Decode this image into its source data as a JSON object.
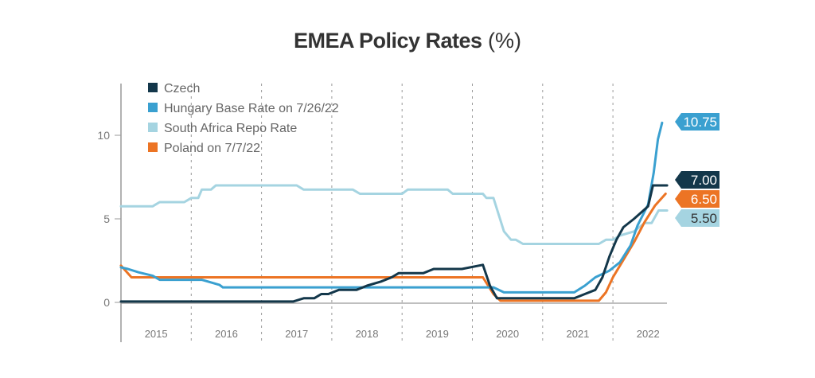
{
  "chart_data": {
    "type": "line",
    "title": "EMEA Policy Rates",
    "title_unit": "(%)",
    "xlabel": "",
    "ylabel": "",
    "xlim": [
      2015.0,
      2023.0
    ],
    "ylim": [
      -2.3,
      13.5
    ],
    "yticks": [
      0,
      5,
      10
    ],
    "ytick_labels": [
      "0",
      "5",
      "10"
    ],
    "x_categories": [
      "2015",
      "2016",
      "2017",
      "2018",
      "2019",
      "2020",
      "2021",
      "2022"
    ],
    "grid": "vertical dashed year separators",
    "legend_position": "top-left",
    "series": [
      {
        "name": "Czech",
        "color": "#13374a",
        "end_label": "7.00",
        "end_label_text_color": "#ffffff",
        "points": [
          [
            2015.0,
            0.05
          ],
          [
            2017.45,
            0.05
          ],
          [
            2017.6,
            0.25
          ],
          [
            2017.75,
            0.25
          ],
          [
            2017.85,
            0.5
          ],
          [
            2017.95,
            0.5
          ],
          [
            2018.1,
            0.75
          ],
          [
            2018.35,
            0.75
          ],
          [
            2018.5,
            1.0
          ],
          [
            2018.7,
            1.25
          ],
          [
            2018.85,
            1.5
          ],
          [
            2018.95,
            1.75
          ],
          [
            2019.3,
            1.75
          ],
          [
            2019.45,
            2.0
          ],
          [
            2019.85,
            2.0
          ],
          [
            2020.15,
            2.25
          ],
          [
            2020.25,
            1.0
          ],
          [
            2020.35,
            0.25
          ],
          [
            2021.45,
            0.25
          ],
          [
            2021.6,
            0.5
          ],
          [
            2021.75,
            0.75
          ],
          [
            2021.85,
            1.5
          ],
          [
            2021.95,
            2.75
          ],
          [
            2022.05,
            3.75
          ],
          [
            2022.15,
            4.5
          ],
          [
            2022.3,
            5.0
          ],
          [
            2022.5,
            5.75
          ],
          [
            2022.57,
            7.0
          ],
          [
            2022.77,
            7.0
          ]
        ]
      },
      {
        "name": "Hungary Base Rate on 7/26/22",
        "color": "#3aa0d0",
        "end_label": "10.75",
        "end_label_text_color": "#ffffff",
        "points": [
          [
            2015.0,
            2.1
          ],
          [
            2015.1,
            2.0
          ],
          [
            2015.25,
            1.8
          ],
          [
            2015.45,
            1.6
          ],
          [
            2015.55,
            1.35
          ],
          [
            2016.15,
            1.35
          ],
          [
            2016.4,
            1.05
          ],
          [
            2016.45,
            0.9
          ],
          [
            2020.3,
            0.9
          ],
          [
            2020.45,
            0.6
          ],
          [
            2021.45,
            0.6
          ],
          [
            2021.6,
            1.0
          ],
          [
            2021.75,
            1.5
          ],
          [
            2021.95,
            1.9
          ],
          [
            2022.1,
            2.4
          ],
          [
            2022.25,
            3.4
          ],
          [
            2022.35,
            4.6
          ],
          [
            2022.5,
            5.85
          ],
          [
            2022.58,
            7.75
          ],
          [
            2022.64,
            9.75
          ],
          [
            2022.7,
            10.75
          ]
        ]
      },
      {
        "name": "South Africa Repo Rate",
        "color": "#a5d4e1",
        "end_label": "5.50",
        "end_label_text_color": "#333333",
        "points": [
          [
            2015.0,
            5.75
          ],
          [
            2015.45,
            5.75
          ],
          [
            2015.55,
            6.0
          ],
          [
            2015.9,
            6.0
          ],
          [
            2016.0,
            6.25
          ],
          [
            2016.1,
            6.25
          ],
          [
            2016.15,
            6.75
          ],
          [
            2016.28,
            6.75
          ],
          [
            2016.35,
            7.0
          ],
          [
            2017.5,
            7.0
          ],
          [
            2017.6,
            6.75
          ],
          [
            2018.3,
            6.75
          ],
          [
            2018.4,
            6.5
          ],
          [
            2019.0,
            6.5
          ],
          [
            2019.08,
            6.75
          ],
          [
            2019.65,
            6.75
          ],
          [
            2019.72,
            6.5
          ],
          [
            2020.15,
            6.5
          ],
          [
            2020.2,
            6.25
          ],
          [
            2020.3,
            6.25
          ],
          [
            2020.45,
            4.25
          ],
          [
            2020.55,
            3.75
          ],
          [
            2020.62,
            3.75
          ],
          [
            2020.72,
            3.5
          ],
          [
            2021.8,
            3.5
          ],
          [
            2021.9,
            3.75
          ],
          [
            2022.0,
            3.75
          ],
          [
            2022.1,
            4.0
          ],
          [
            2022.3,
            4.25
          ],
          [
            2022.45,
            4.75
          ],
          [
            2022.55,
            4.75
          ],
          [
            2022.65,
            5.5
          ],
          [
            2022.77,
            5.5
          ]
        ]
      },
      {
        "name": "Poland on 7/7/22",
        "color": "#ec7424",
        "end_label": "6.50",
        "end_label_text_color": "#ffffff",
        "points": [
          [
            2015.0,
            2.2
          ],
          [
            2015.15,
            1.5
          ],
          [
            2020.15,
            1.5
          ],
          [
            2020.3,
            0.5
          ],
          [
            2020.4,
            0.1
          ],
          [
            2021.8,
            0.1
          ],
          [
            2021.9,
            0.6
          ],
          [
            2022.0,
            1.5
          ],
          [
            2022.1,
            2.2
          ],
          [
            2022.3,
            3.6
          ],
          [
            2022.45,
            4.8
          ],
          [
            2022.6,
            5.8
          ],
          [
            2022.75,
            6.5
          ]
        ]
      }
    ]
  }
}
